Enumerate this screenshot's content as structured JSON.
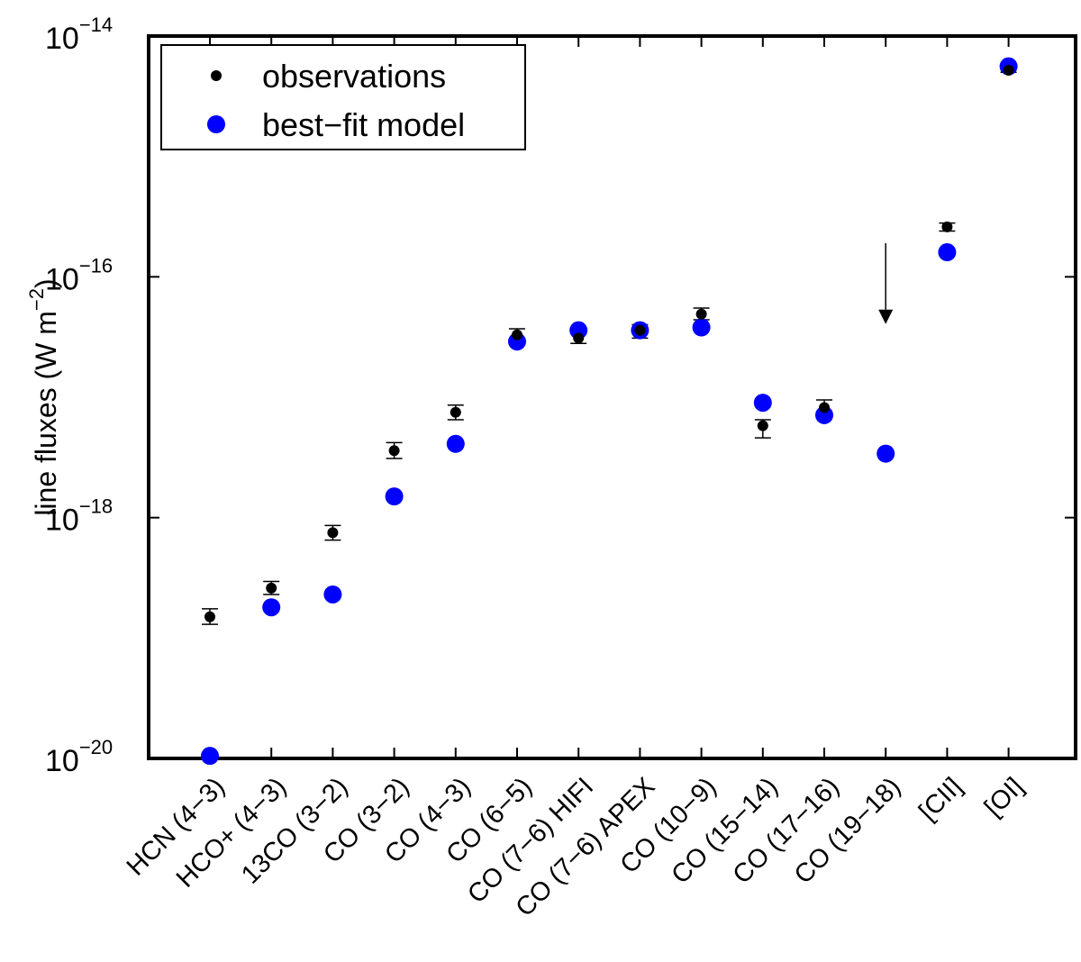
{
  "chart_data": {
    "type": "scatter",
    "yscale": "log",
    "ylabel": "line fluxes (W m^-2)",
    "ylabel_parts": {
      "text": "line fluxes (W m",
      "exponent": "−2",
      "close": ")"
    },
    "ylim": [
      1e-20,
      1e-14
    ],
    "yticks": [
      {
        "base": "10",
        "exponent": "−14",
        "value": 1e-14
      },
      {
        "base": "10",
        "exponent": "−16",
        "value": 1e-16
      },
      {
        "base": "10",
        "exponent": "−18",
        "value": 1e-18
      },
      {
        "base": "10",
        "exponent": "−20",
        "value": 1e-20
      }
    ],
    "categories": [
      "HCN (4−3)",
      "HCO+ (4−3)",
      "13CO (3−2)",
      "CO (3−2)",
      "CO (4−3)",
      "CO (6−5)",
      "CO (7−6) HIFI",
      "CO (7−6) APEX",
      "CO (10−9)",
      "CO (15−14)",
      "CO (17−16)",
      "CO (19−18)",
      "[CII]",
      "[OI]"
    ],
    "legend": [
      {
        "label": "observations",
        "color": "#000000"
      },
      {
        "label": "best−fit model",
        "color": "#0000ff"
      }
    ],
    "legend_position": "top-left",
    "series": [
      {
        "name": "observations",
        "color": "#000000",
        "values": [
          1.5e-19,
          2.6e-19,
          7.5e-19,
          3.6e-18,
          7.5e-18,
          3.3e-17,
          3.1e-17,
          3.6e-17,
          4.9e-17,
          5.8e-18,
          8.2e-18,
          null,
          2.6e-16,
          5.2e-15
        ],
        "err_low": [
          1.3e-19,
          2.3e-19,
          6.5e-19,
          3.1e-18,
          6.5e-18,
          2.9e-17,
          2.8e-17,
          3.1e-17,
          4.4e-17,
          4.6e-18,
          6.9e-18,
          null,
          2.4e-16,
          5e-15
        ],
        "err_high": [
          1.75e-19,
          2.95e-19,
          8.6e-19,
          4.2e-18,
          8.6e-18,
          3.7e-17,
          3.4e-17,
          4e-17,
          5.5e-17,
          6.5e-18,
          9.5e-18,
          null,
          2.8e-16,
          5.4e-15
        ],
        "upper_limits": [
          {
            "category": "CO (19−18)",
            "from": 1.9e-16,
            "to": 4.2e-17
          }
        ]
      },
      {
        "name": "best−fit model",
        "color": "#0000ff",
        "values": [
          1.05e-20,
          1.8e-19,
          2.3e-19,
          1.5e-18,
          4.1e-18,
          2.9e-17,
          3.6e-17,
          3.6e-17,
          3.8e-17,
          9e-18,
          7.1e-18,
          3.4e-18,
          1.6e-16,
          5.6e-15
        ]
      }
    ]
  }
}
